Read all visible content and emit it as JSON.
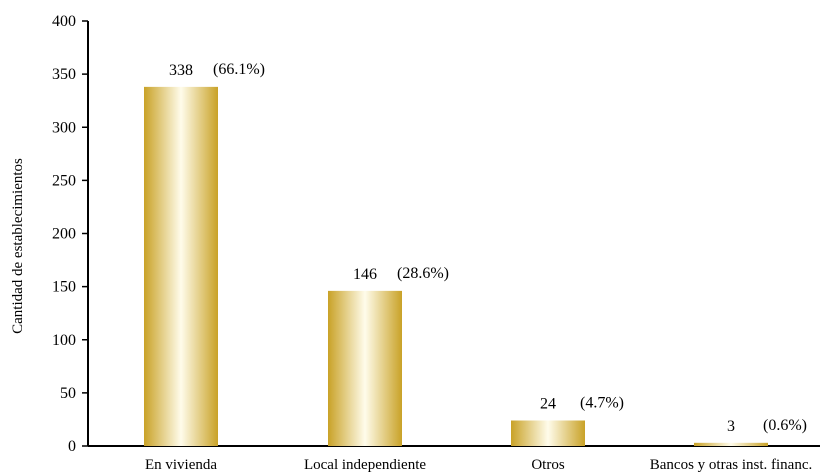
{
  "chart_data": {
    "type": "bar",
    "title": "",
    "xlabel": "",
    "ylabel": "Cantidad de establecimientos",
    "ylim": [
      0,
      400
    ],
    "yticks": [
      0,
      50,
      100,
      150,
      200,
      250,
      300,
      350,
      400
    ],
    "grid": false,
    "categories": [
      "En vivienda",
      "Local independiente",
      "Otros",
      "Bancos y otras inst. financ."
    ],
    "values": [
      338,
      146,
      24,
      3
    ],
    "value_labels": [
      "338",
      "146",
      "24",
      "3"
    ],
    "percent_labels": [
      "(66.1%)",
      "(28.6%)",
      "(4.7%)",
      "(0.6%)"
    ],
    "colors": {
      "bar_dark": "#C9A227",
      "bar_light": "#FFFCEB",
      "axis": "#000000"
    }
  }
}
